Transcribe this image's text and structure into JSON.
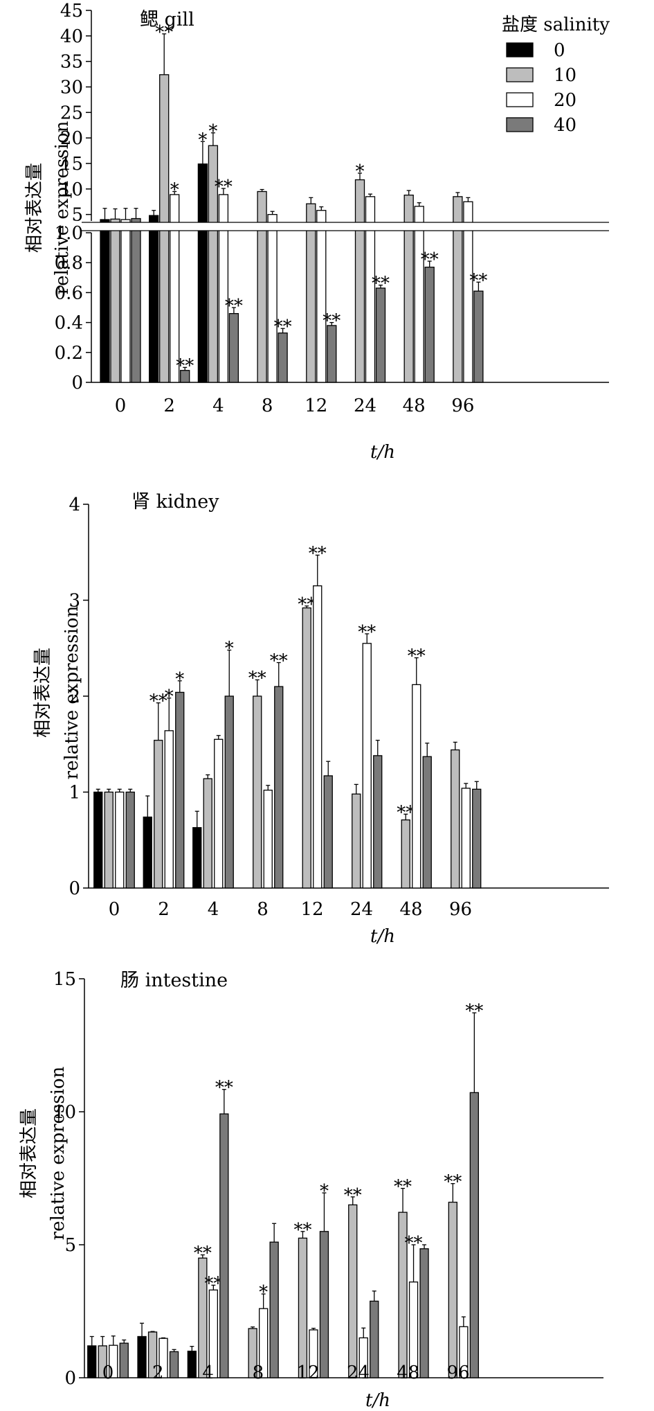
{
  "chart_data": [
    {
      "type": "bar",
      "title": "鳃 gill",
      "ylabel": [
        "相对表达量",
        "relative expression"
      ],
      "xlabel": "t/h",
      "legend": {
        "title": "盐度 salinity",
        "placement": "top-right",
        "entries": [
          "0",
          "10",
          "20",
          "40"
        ]
      },
      "categories": [
        "0",
        "2",
        "4",
        "8",
        "12",
        "24",
        "48",
        "96"
      ],
      "ylim_lower": [
        0,
        1.0
      ],
      "ylim_upper": [
        4,
        45
      ],
      "yticks_lower": [
        "0",
        "0.2",
        "0.4",
        "0.6",
        "0.8",
        "1.0"
      ],
      "yticks_upper": [
        "5",
        "10",
        "15",
        "20",
        "25",
        "30",
        "35",
        "40",
        "45"
      ],
      "series": [
        {
          "name": "0",
          "values": [
            4.0,
            4.8,
            14.9,
            null,
            null,
            null,
            null,
            null
          ],
          "errors": [
            2.2,
            1.0,
            4.4,
            0,
            0,
            0,
            0,
            0
          ],
          "stars": [
            "",
            "",
            "*",
            "",
            "",
            "",
            "",
            ""
          ]
        },
        {
          "name": "10",
          "values": [
            4.1,
            32.4,
            18.5,
            9.5,
            7.1,
            11.8,
            8.8,
            8.5
          ],
          "errors": [
            2.0,
            8.0,
            2.5,
            0.4,
            1.2,
            1.3,
            0.9,
            0.8
          ],
          "stars": [
            "",
            "**",
            "*",
            "",
            "",
            "*",
            "",
            ""
          ]
        },
        {
          "name": "20",
          "values": [
            4.0,
            8.9,
            8.9,
            5.0,
            5.8,
            8.5,
            6.6,
            7.5
          ],
          "errors": [
            2.2,
            0.6,
            1.2,
            0.6,
            0.7,
            0.5,
            0.7,
            0.8
          ],
          "stars": [
            "",
            "*",
            "**",
            "",
            "",
            "",
            "",
            ""
          ]
        },
        {
          "name": "40",
          "values": [
            4.2,
            0.08,
            0.46,
            0.33,
            0.38,
            0.63,
            0.77,
            0.61
          ],
          "errors": [
            2.0,
            0.02,
            0.04,
            0.03,
            0.02,
            0.02,
            0.04,
            0.06
          ],
          "stars": [
            "",
            "**",
            "**",
            "**",
            "**",
            "**",
            "**",
            "**"
          ]
        }
      ]
    },
    {
      "type": "bar",
      "title": "肾 kidney",
      "ylabel": [
        "相对表达量",
        "relative expression"
      ],
      "xlabel": "t/h",
      "categories": [
        "0",
        "2",
        "4",
        "8",
        "12",
        "24",
        "48",
        "96"
      ],
      "ylim": [
        0,
        4
      ],
      "yticks": [
        "0",
        "1",
        "2",
        "3",
        "4"
      ],
      "series": [
        {
          "name": "0",
          "values": [
            1.0,
            0.74,
            0.63,
            null,
            null,
            null,
            null,
            null
          ],
          "errors": [
            0.03,
            0.22,
            0.17,
            0,
            0,
            0,
            0,
            0
          ],
          "stars": [
            "",
            "",
            "",
            "",
            "",
            "",
            "",
            ""
          ]
        },
        {
          "name": "10",
          "values": [
            1.0,
            1.54,
            1.14,
            2.0,
            2.92,
            0.98,
            0.71,
            1.44
          ],
          "errors": [
            0.03,
            0.39,
            0.04,
            0.17,
            0.02,
            0.1,
            0.06,
            0.08
          ],
          "stars": [
            "",
            "**",
            "",
            "**",
            "**",
            "",
            "**",
            ""
          ]
        },
        {
          "name": "20",
          "values": [
            1.0,
            1.64,
            1.55,
            1.02,
            3.15,
            2.55,
            2.12,
            1.04
          ],
          "errors": [
            0.03,
            0.34,
            0.04,
            0.05,
            0.32,
            0.1,
            0.28,
            0.05
          ],
          "stars": [
            "",
            "*",
            "",
            "",
            "**",
            "**",
            "**",
            ""
          ]
        },
        {
          "name": "40",
          "values": [
            1.0,
            2.04,
            2.0,
            2.1,
            1.17,
            1.38,
            1.37,
            1.03
          ],
          "errors": [
            0.03,
            0.12,
            0.48,
            0.25,
            0.15,
            0.16,
            0.14,
            0.08
          ],
          "stars": [
            "",
            "*",
            "*",
            "**",
            "",
            "",
            "",
            ""
          ]
        }
      ]
    },
    {
      "type": "bar",
      "title": "肠 intestine",
      "ylabel": [
        "相对表达量",
        "relative expression"
      ],
      "xlabel": "t/h",
      "categories": [
        "0",
        "2",
        "4",
        "8",
        "12",
        "24",
        "48",
        "96"
      ],
      "ylim": [
        0,
        15
      ],
      "yticks": [
        "0",
        "5",
        "10",
        "15"
      ],
      "series": [
        {
          "name": "0",
          "values": [
            1.2,
            1.55,
            1.0,
            null,
            null,
            null,
            null,
            null
          ],
          "errors": [
            0.35,
            0.5,
            0.18,
            0,
            0,
            0,
            0,
            0
          ],
          "stars": [
            "",
            "",
            "",
            "",
            "",
            "",
            "",
            ""
          ]
        },
        {
          "name": "10",
          "values": [
            1.2,
            1.72,
            4.5,
            1.85,
            5.25,
            6.5,
            6.22,
            6.6
          ],
          "errors": [
            0.35,
            0.02,
            0.12,
            0.06,
            0.25,
            0.3,
            0.9,
            0.7
          ],
          "stars": [
            "",
            "",
            "**",
            "",
            "**",
            "**",
            "**",
            "**"
          ]
        },
        {
          "name": "20",
          "values": [
            1.22,
            1.48,
            3.3,
            2.6,
            1.8,
            1.5,
            3.6,
            1.92
          ],
          "errors": [
            0.35,
            0.02,
            0.18,
            0.55,
            0.06,
            0.37,
            1.4,
            0.37
          ],
          "stars": [
            "",
            "",
            "**",
            "*",
            "",
            "",
            "**",
            ""
          ]
        },
        {
          "name": "40",
          "values": [
            1.3,
            0.98,
            9.92,
            5.1,
            5.5,
            2.88,
            4.85,
            10.72
          ],
          "errors": [
            0.12,
            0.08,
            0.92,
            0.7,
            1.45,
            0.38,
            0.15,
            3.0
          ],
          "stars": [
            "",
            "",
            "**",
            "",
            "*",
            "",
            "",
            "**"
          ]
        }
      ]
    }
  ],
  "colors": {
    "s0": "#000000",
    "s10": "#bdbdbd",
    "s20": "#ffffff",
    "s40": "#7a7a7a",
    "axis": "#000000"
  }
}
